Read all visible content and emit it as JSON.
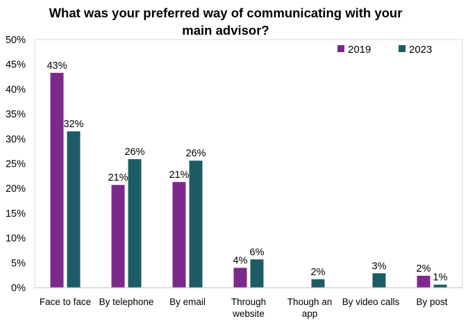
{
  "chart_data": {
    "type": "bar",
    "title": "What was your preferred way of communicating with your main advisor?",
    "title_lines": [
      "What was your preferred way of communicating with your",
      "main advisor?"
    ],
    "xlabel": "",
    "ylabel": "",
    "categories": [
      "Face to face",
      "By telephone",
      "By email",
      "Through website",
      "Though an app",
      "By video calls",
      "By post"
    ],
    "category_lines": [
      [
        "Face to face"
      ],
      [
        "By telephone"
      ],
      [
        "By email"
      ],
      [
        "Through",
        "website"
      ],
      [
        "Though an",
        "app"
      ],
      [
        "By video calls"
      ],
      [
        "By post"
      ]
    ],
    "series": [
      {
        "name": "2019",
        "color": "#7B2A8C",
        "values": [
          43.3,
          20.7,
          21.3,
          4.0,
          null,
          null,
          2.4
        ],
        "labels": [
          "43%",
          "21%",
          "21%",
          "4%",
          "",
          "",
          "2%"
        ]
      },
      {
        "name": "2023",
        "color": "#1D5C66",
        "values": [
          31.5,
          25.9,
          25.6,
          5.7,
          1.7,
          2.9,
          0.6
        ],
        "labels": [
          "32%",
          "26%",
          "26%",
          "6%",
          "2%",
          "3%",
          "1%"
        ]
      }
    ],
    "ylim": [
      0,
      50
    ],
    "yticks": [
      "0%",
      "5%",
      "10%",
      "15%",
      "20%",
      "25%",
      "30%",
      "35%",
      "40%",
      "45%",
      "50%"
    ],
    "grid": false,
    "legend_position": "top-right"
  }
}
